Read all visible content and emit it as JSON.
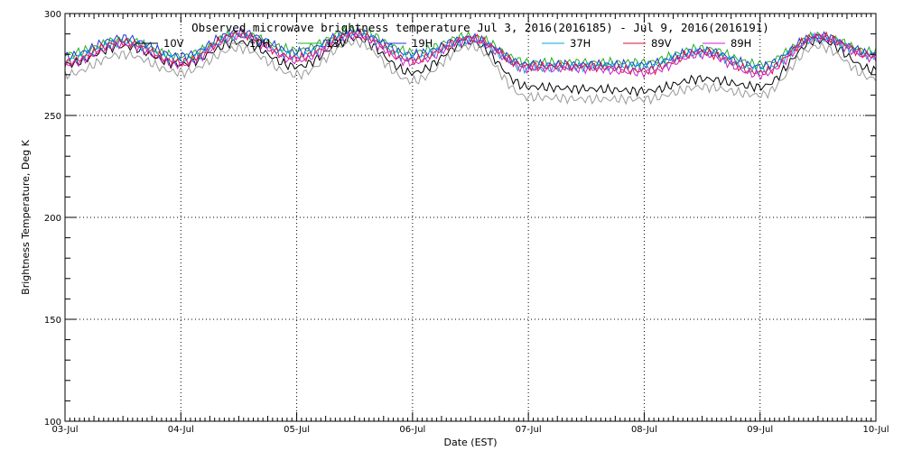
{
  "chart_data": {
    "type": "line",
    "title": "Observed microwave brightness temperature Jul  3, 2016(2016185) - Jul  9, 2016(2016191)",
    "xlabel": "Date (EST)",
    "ylabel": "Brightness Temperature, Deg K",
    "xlim": [
      "2016-07-03",
      "2016-07-10"
    ],
    "ylim": [
      100,
      300
    ],
    "x_ticks": [
      "03-Jul",
      "04-Jul",
      "05-Jul",
      "06-Jul",
      "07-Jul",
      "08-Jul",
      "09-Jul",
      "10-Jul"
    ],
    "y_ticks": [
      100,
      150,
      200,
      250,
      300
    ],
    "grid": true,
    "legend_position": "top",
    "x": [
      "2016-07-03",
      "2016-07-03 12:00",
      "2016-07-04",
      "2016-07-04 12:00",
      "2016-07-05",
      "2016-07-05 12:00",
      "2016-07-06",
      "2016-07-06 12:00",
      "2016-07-07",
      "2016-07-07 12:00",
      "2016-07-08",
      "2016-07-08 12:00",
      "2016-07-09",
      "2016-07-09 12:00",
      "2016-07-10"
    ],
    "series": [
      {
        "name": "10V",
        "color": "#000000",
        "values": [
          275,
          284,
          275,
          286,
          274,
          288,
          271,
          286,
          264,
          263,
          262,
          268,
          264,
          287,
          272
        ]
      },
      {
        "name": "10H",
        "color": "#999999",
        "values": [
          270,
          280,
          271,
          283,
          270,
          286,
          267,
          284,
          259,
          258,
          258,
          264,
          260,
          284,
          268
        ]
      },
      {
        "name": "13V",
        "color": "#22b022",
        "values": [
          280,
          287,
          279,
          290,
          282,
          292,
          281,
          289,
          276,
          276,
          276,
          283,
          275,
          289,
          281
        ]
      },
      {
        "name": "19H",
        "color": "#2233dd",
        "values": [
          279,
          288,
          279,
          291,
          281,
          291,
          280,
          288,
          275,
          275,
          275,
          282,
          274,
          289,
          280
        ]
      },
      {
        "name": "37H",
        "color": "#00aacc",
        "values": [
          277,
          286,
          277,
          289,
          279,
          290,
          278,
          287,
          273,
          274,
          274,
          281,
          272,
          288,
          279
        ]
      },
      {
        "name": "89V",
        "color": "#dd1133",
        "values": [
          276,
          286,
          276,
          290,
          278,
          290,
          277,
          288,
          274,
          274,
          272,
          281,
          271,
          289,
          279
        ]
      },
      {
        "name": "89H",
        "color": "#cc22cc",
        "values": [
          275,
          285,
          275,
          289,
          277,
          289,
          276,
          287,
          273,
          273,
          271,
          280,
          270,
          288,
          278
        ]
      }
    ]
  }
}
